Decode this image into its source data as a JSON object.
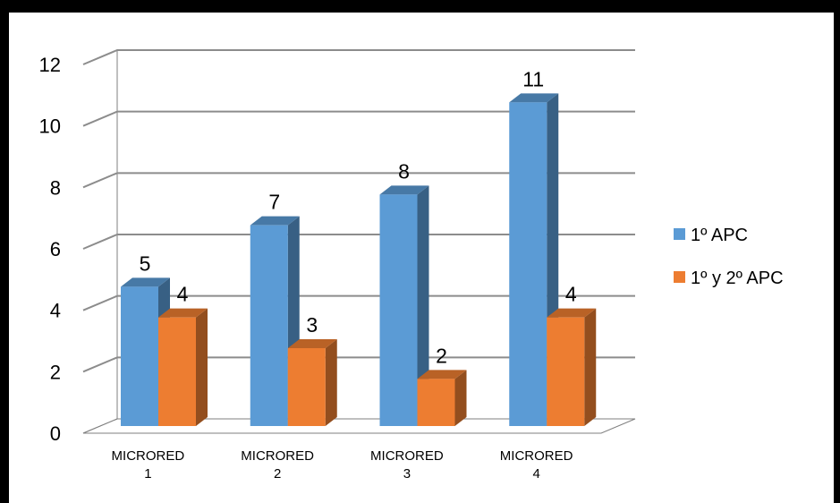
{
  "chart_data": {
    "type": "bar",
    "categories": [
      [
        "MICRORED",
        "1"
      ],
      [
        "MICRORED",
        "2"
      ],
      [
        "MICRORED",
        "3"
      ],
      [
        "MICRORED",
        "4"
      ]
    ],
    "series": [
      {
        "name": "1º APC",
        "values": [
          5,
          7,
          8,
          11
        ],
        "color": "#5b9bd5"
      },
      {
        "name": "1º y 2º APC",
        "values": [
          4,
          3,
          2,
          4
        ],
        "color": "#ed7d31"
      }
    ],
    "y_ticks": [
      "0",
      "2",
      "4",
      "6",
      "8",
      "10",
      "12"
    ],
    "ylim": [
      0,
      12
    ],
    "grid": true,
    "legend_position": "right",
    "title": "",
    "xlabel": "",
    "ylabel": ""
  }
}
